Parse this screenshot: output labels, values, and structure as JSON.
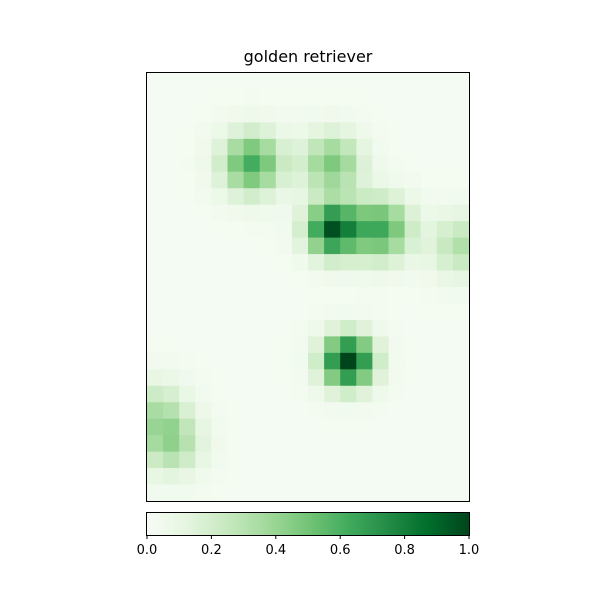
{
  "chart_data": {
    "type": "heatmap",
    "title": "golden retriever",
    "xlabel": "",
    "ylabel": "",
    "colormap": "Greens",
    "colormap_stops": [
      "#f7fcf5",
      "#e5f5e0",
      "#c7e9c0",
      "#a1d99b",
      "#74c476",
      "#41ab5d",
      "#238b45",
      "#006d2c",
      "#00441b"
    ],
    "color_range": [
      0.0,
      1.0
    ],
    "grid": false,
    "axes_ticks_visible": false,
    "colorbar": {
      "orientation": "horizontal",
      "placement": "bottom",
      "ticks": [
        0.0,
        0.2,
        0.4,
        0.6,
        0.8,
        1.0
      ],
      "tick_labels": [
        "0.0",
        "0.2",
        "0.4",
        "0.6",
        "0.8",
        "1.0"
      ]
    },
    "grid_shape": [
      26,
      20
    ],
    "hotspots": [
      {
        "region": "center-lower",
        "row": 17,
        "col": 12,
        "value": 1.0
      },
      {
        "region": "center",
        "row": 9,
        "col": 11,
        "value": 0.9
      },
      {
        "region": "center-right",
        "row": 9,
        "col": 14,
        "value": 0.6
      },
      {
        "region": "upper-left",
        "row": 5,
        "col": 6,
        "value": 0.6
      },
      {
        "region": "upper-middle",
        "row": 5,
        "col": 11,
        "value": 0.45
      },
      {
        "region": "right-edge",
        "row": 10,
        "col": 19,
        "value": 0.3
      },
      {
        "region": "lower-left",
        "row": 22,
        "col": 1,
        "value": 0.35
      },
      {
        "region": "left-edge",
        "row": 20,
        "col": 0,
        "value": 0.25
      }
    ]
  }
}
